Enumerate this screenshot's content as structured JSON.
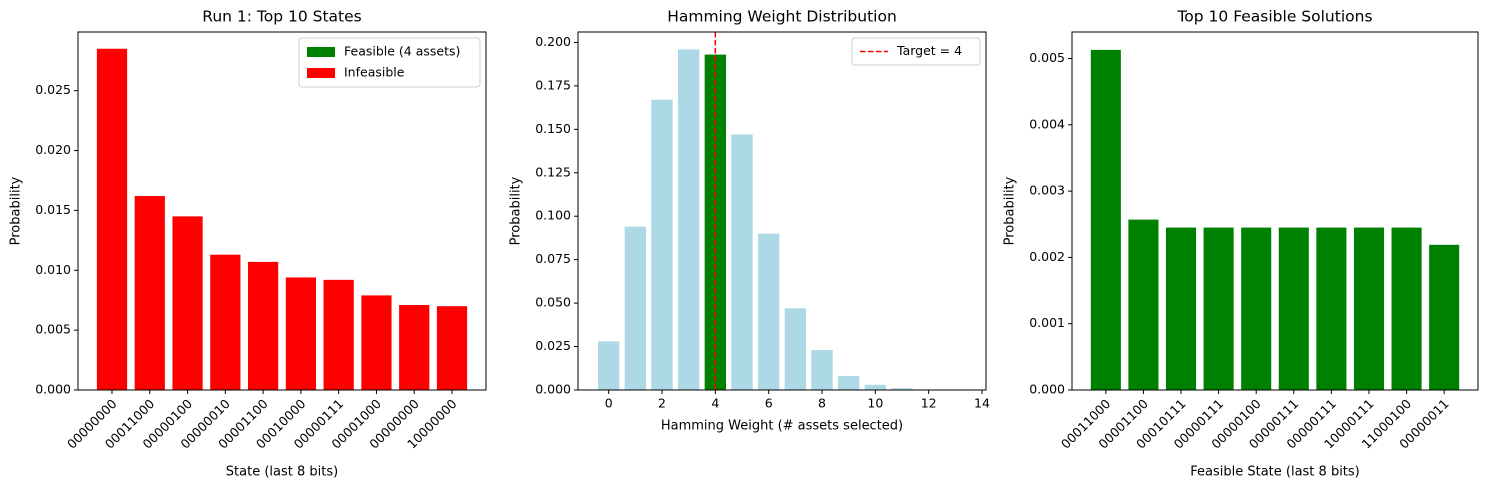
{
  "chart_data": [
    {
      "type": "bar",
      "title": "Run 1: Top 10 States",
      "xlabel": "State (last 8 bits)",
      "ylabel": "Probability",
      "categories": [
        "00000000",
        "00011000",
        "00000100",
        "00000010",
        "00001100",
        "00010000",
        "00000111",
        "00001000",
        "00000000",
        "10000000"
      ],
      "values": [
        0.0285,
        0.0162,
        0.0145,
        0.0113,
        0.0107,
        0.0094,
        0.0092,
        0.0079,
        0.0071,
        0.007
      ],
      "color": "red",
      "ylim": [
        0,
        0.0299
      ],
      "yticks": [
        {
          "value": 0,
          "label": "0.000"
        },
        {
          "value": 0.005,
          "label": "0.005"
        },
        {
          "value": 0.01,
          "label": "0.010"
        },
        {
          "value": 0.015,
          "label": "0.015"
        },
        {
          "value": 0.02,
          "label": "0.020"
        },
        {
          "value": 0.025,
          "label": "0.025"
        }
      ],
      "legend": [
        {
          "name": "Feasible (4 assets)",
          "color": "green"
        },
        {
          "name": "Infeasible",
          "color": "red"
        }
      ],
      "legend_position": "upper right"
    },
    {
      "type": "bar",
      "title": "Hamming Weight Distribution",
      "xlabel": "Hamming Weight (# assets selected)",
      "ylabel": "Probability",
      "x": [
        0,
        1,
        2,
        3,
        4,
        5,
        6,
        7,
        8,
        9,
        10,
        11,
        12,
        13
      ],
      "values": [
        0.028,
        0.094,
        0.167,
        0.196,
        0.193,
        0.147,
        0.09,
        0.047,
        0.023,
        0.008,
        0.003,
        0.001,
        0.0002,
        0.0001
      ],
      "colors": [
        "lightblue",
        "lightblue",
        "lightblue",
        "lightblue",
        "green",
        "lightblue",
        "lightblue",
        "lightblue",
        "lightblue",
        "lightblue",
        "lightblue",
        "lightblue",
        "lightblue",
        "lightblue"
      ],
      "xlim": [
        -1.15,
        14.15
      ],
      "xticks": [
        0,
        2,
        4,
        6,
        8,
        10,
        12,
        14
      ],
      "ylim": [
        0,
        0.206
      ],
      "yticks": [
        {
          "value": 0,
          "label": "0.000"
        },
        {
          "value": 0.025,
          "label": "0.025"
        },
        {
          "value": 0.05,
          "label": "0.050"
        },
        {
          "value": 0.075,
          "label": "0.075"
        },
        {
          "value": 0.1,
          "label": "0.100"
        },
        {
          "value": 0.125,
          "label": "0.125"
        },
        {
          "value": 0.15,
          "label": "0.150"
        },
        {
          "value": 0.175,
          "label": "0.175"
        },
        {
          "value": 0.2,
          "label": "0.200"
        }
      ],
      "target": 4,
      "target_label": "Target = 4",
      "target_color": "red",
      "legend_position": "upper right"
    },
    {
      "type": "bar",
      "title": "Top 10 Feasible Solutions",
      "xlabel": "Feasible State (last 8 bits)",
      "ylabel": "Probability",
      "categories": [
        "00011000",
        "00001100",
        "00010111",
        "00000111",
        "00000100",
        "00000111",
        "00000111",
        "10000111",
        "11000100",
        "00000011"
      ],
      "values": [
        0.00513,
        0.00257,
        0.00245,
        0.00245,
        0.00245,
        0.00245,
        0.00245,
        0.00245,
        0.00245,
        0.00219
      ],
      "color": "green",
      "ylim": [
        0,
        0.0054
      ],
      "yticks": [
        {
          "value": 0,
          "label": "0.000"
        },
        {
          "value": 0.001,
          "label": "0.001"
        },
        {
          "value": 0.002,
          "label": "0.002"
        },
        {
          "value": 0.003,
          "label": "0.003"
        },
        {
          "value": 0.004,
          "label": "0.004"
        },
        {
          "value": 0.005,
          "label": "0.005"
        }
      ]
    }
  ]
}
